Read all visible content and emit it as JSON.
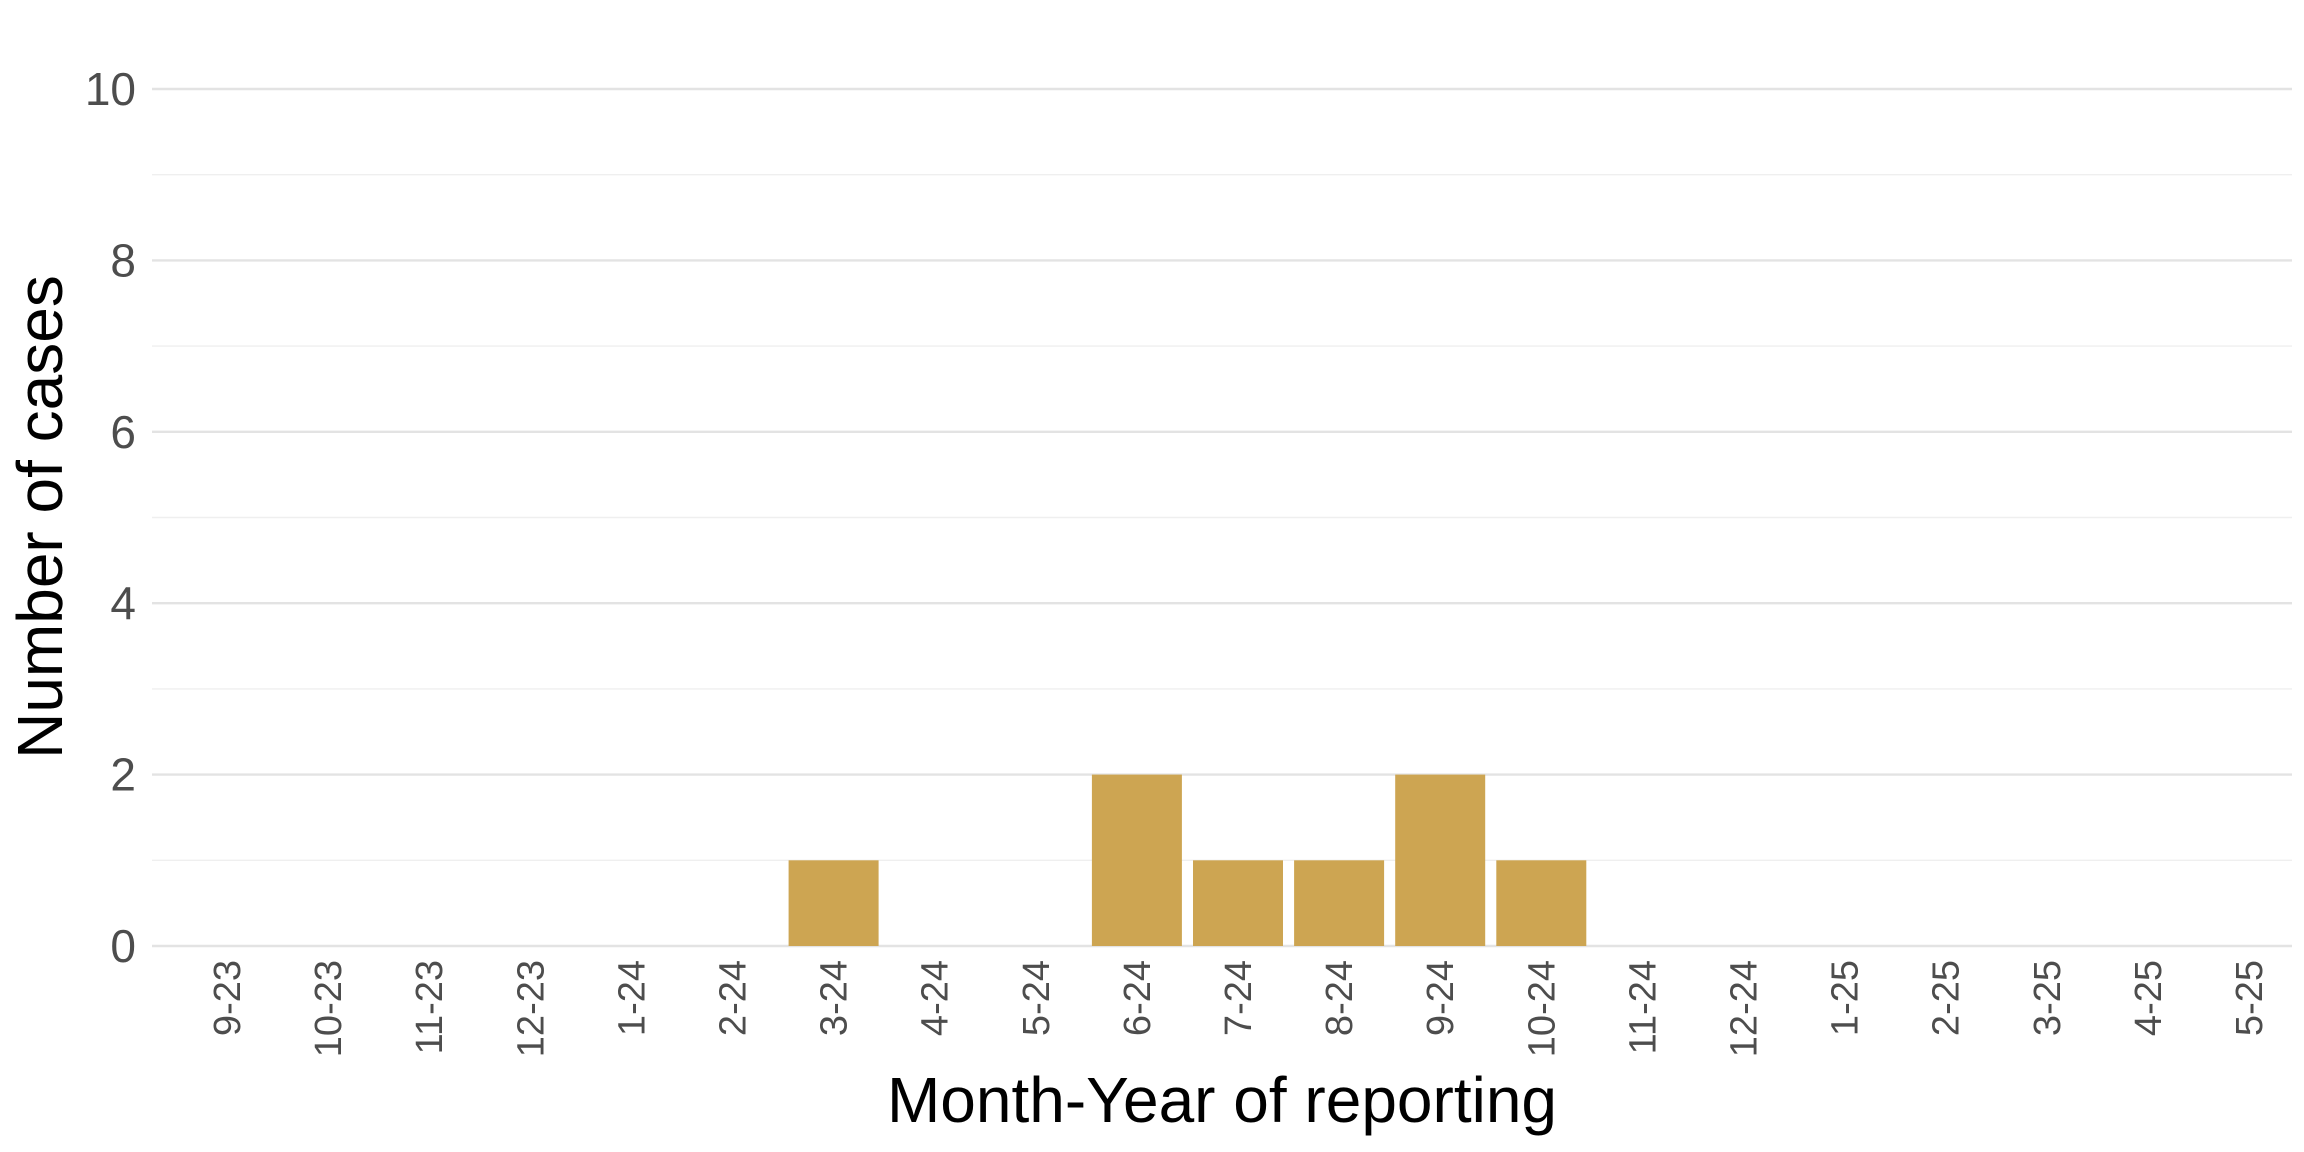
{
  "chart_data": {
    "type": "bar",
    "title": "",
    "xlabel": "Month-Year of reporting",
    "ylabel": "Number of cases",
    "categories": [
      "9-23",
      "10-23",
      "11-23",
      "12-23",
      "1-24",
      "2-24",
      "3-24",
      "4-24",
      "5-24",
      "6-24",
      "7-24",
      "8-24",
      "9-24",
      "10-24",
      "11-24",
      "12-24",
      "1-25",
      "2-25",
      "3-25",
      "4-25",
      "5-25"
    ],
    "values": [
      0,
      0,
      0,
      0,
      0,
      0,
      1,
      0,
      0,
      2,
      1,
      1,
      2,
      1,
      0,
      0,
      0,
      0,
      0,
      0,
      0
    ],
    "ylim": [
      0,
      10
    ],
    "y_ticks": [
      0,
      2,
      4,
      6,
      8,
      10
    ],
    "grid": true,
    "legend": "none",
    "bar_color": "#CDA552"
  }
}
